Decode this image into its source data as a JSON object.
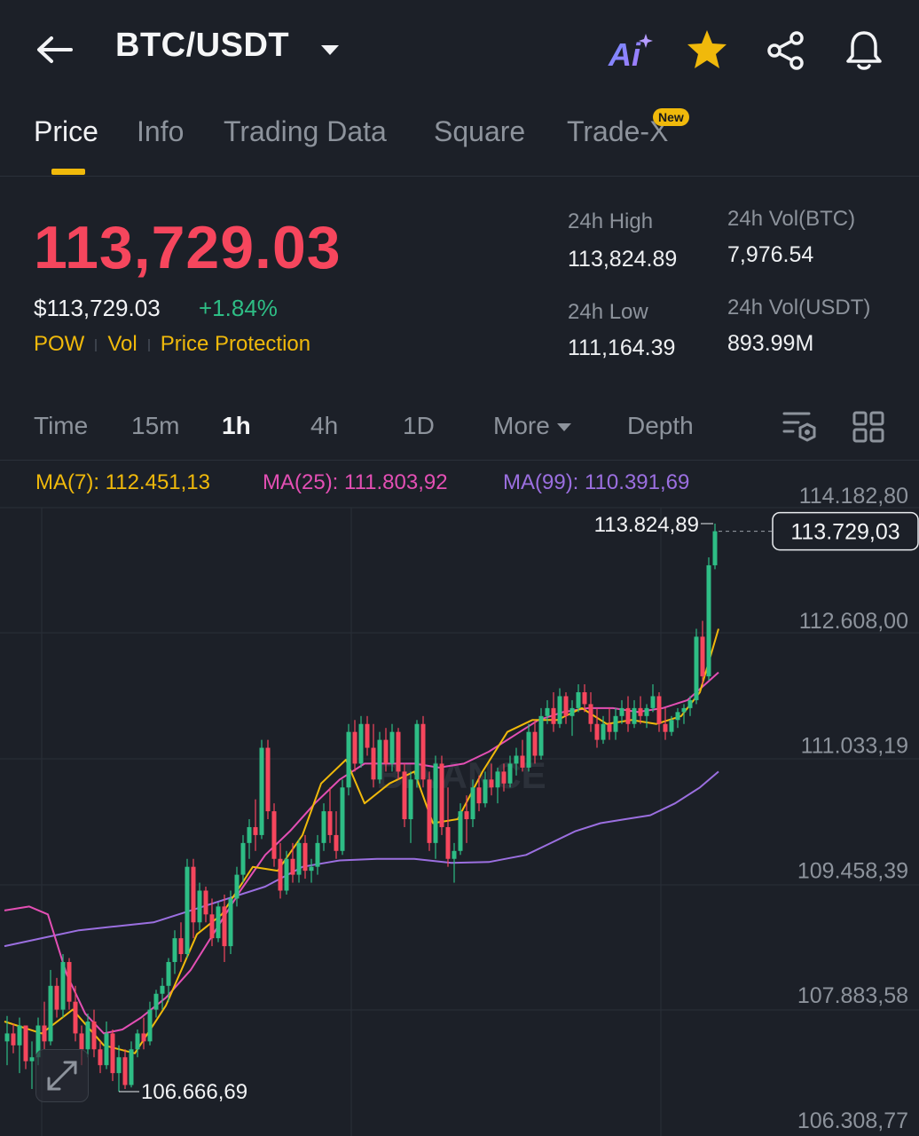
{
  "header": {
    "pair": "BTC/USDT",
    "ai_label": "Ai",
    "icons": [
      "back-arrow-icon",
      "caret-down-icon",
      "ai-icon",
      "star-icon",
      "share-icon",
      "bell-icon"
    ],
    "star_color": "#f0b90b"
  },
  "tabs": [
    {
      "label": "Price",
      "active": true
    },
    {
      "label": "Info",
      "active": false
    },
    {
      "label": "Trading Data",
      "active": false
    },
    {
      "label": "Square",
      "active": false
    },
    {
      "label": "Trade-X",
      "active": false,
      "badge": "New"
    }
  ],
  "price": {
    "last": "113,729.03",
    "usd": "$113,729.03",
    "change": "+1.84%",
    "tags": [
      "POW",
      "Vol",
      "Price Protection"
    ]
  },
  "stats": {
    "high_label": "24h High",
    "high_value": "113,824.89",
    "low_label": "24h Low",
    "low_value": "111,164.39",
    "vol_btc_label": "24h Vol(BTC)",
    "vol_btc_value": "7,976.54",
    "vol_usdt_label": "24h Vol(USDT)",
    "vol_usdt_value": "893.99M"
  },
  "intervals": [
    {
      "label": "Time",
      "active": false
    },
    {
      "label": "15m",
      "active": false
    },
    {
      "label": "1h",
      "active": true
    },
    {
      "label": "4h",
      "active": false
    },
    {
      "label": "1D",
      "active": false
    },
    {
      "label": "More",
      "active": false
    },
    {
      "label": "Depth",
      "active": false
    }
  ],
  "ma_legend": {
    "ma7": "MA(7): 112.451,13",
    "ma25": "MA(25): 111.803,92",
    "ma99": "MA(99): 110.391,69"
  },
  "colors": {
    "up": "#2ebd85",
    "down": "#f6465d",
    "ma7": "#f0b90b",
    "ma25": "#e34fb4",
    "ma99": "#9b6fe0",
    "accent": "#f0b90b"
  },
  "chart_data": {
    "type": "candlestick",
    "interval": "1h",
    "y_ticks": [
      "114.182,80",
      "112.608,00",
      "111.033,19",
      "109.458,39",
      "107.883,58",
      "106.308,77"
    ],
    "y_tick_values": [
      114182.8,
      112608.0,
      111033.19,
      109458.39,
      107883.58,
      106308.77
    ],
    "ylim": [
      106308.77,
      114182.8
    ],
    "current_price_label": "113.729,03",
    "current_price": 113729.03,
    "high_marker_label": "113.824,89",
    "high_marker": 113824.89,
    "low_marker_label": "106.666,69",
    "low_marker": 106666.69,
    "watermark": "BINANCE",
    "candles": [
      [
        107300,
        107620,
        107000,
        107400
      ],
      [
        107400,
        107520,
        107150,
        107250
      ],
      [
        107250,
        107600,
        106900,
        107500
      ],
      [
        107500,
        107500,
        106950,
        107050
      ],
      [
        107050,
        107300,
        106700,
        107100
      ],
      [
        107100,
        107600,
        107000,
        107500
      ],
      [
        107500,
        107800,
        107200,
        107300
      ],
      [
        107300,
        108200,
        107250,
        108000
      ],
      [
        108000,
        108100,
        107600,
        107700
      ],
      [
        107700,
        108400,
        107600,
        108300
      ],
      [
        108300,
        108350,
        107700,
        107800
      ],
      [
        107800,
        108000,
        107300,
        107400
      ],
      [
        107400,
        107500,
        107000,
        107200
      ],
      [
        107200,
        107650,
        107100,
        107550
      ],
      [
        107550,
        107700,
        107100,
        107200
      ],
      [
        107200,
        107300,
        106900,
        107000
      ],
      [
        107000,
        107550,
        106950,
        107400
      ],
      [
        107400,
        107450,
        106800,
        106900
      ],
      [
        106900,
        107250,
        106666.69,
        107100
      ],
      [
        107100,
        107200,
        106700,
        106750
      ],
      [
        106750,
        107300,
        106720,
        107200
      ],
      [
        107200,
        107450,
        107100,
        107400
      ],
      [
        107400,
        107600,
        107200,
        107300
      ],
      [
        107300,
        107800,
        107250,
        107700
      ],
      [
        107700,
        107950,
        107600,
        107900
      ],
      [
        107900,
        108100,
        107700,
        108000
      ],
      [
        108000,
        108350,
        107800,
        108300
      ],
      [
        108300,
        108700,
        108150,
        108600
      ],
      [
        108600,
        108800,
        108300,
        108400
      ],
      [
        108400,
        109600,
        108350,
        109500
      ],
      [
        109500,
        109600,
        108600,
        108800
      ],
      [
        108800,
        109300,
        108700,
        109200
      ],
      [
        109200,
        109250,
        108800,
        108900
      ],
      [
        108900,
        109100,
        108500,
        108600
      ],
      [
        108600,
        109050,
        108550,
        109000
      ],
      [
        109000,
        109150,
        108300,
        108500
      ],
      [
        108500,
        109200,
        108400,
        109100
      ],
      [
        109100,
        109500,
        109000,
        109400
      ],
      [
        109400,
        109900,
        109300,
        109800
      ],
      [
        109800,
        110100,
        109600,
        110000
      ],
      [
        110000,
        110350,
        109700,
        109900
      ],
      [
        109900,
        111100,
        109850,
        111000
      ],
      [
        111000,
        111100,
        110100,
        110200
      ],
      [
        110200,
        110300,
        109500,
        109600
      ],
      [
        109600,
        109800,
        109100,
        109200
      ],
      [
        109200,
        109700,
        109150,
        109600
      ],
      [
        109600,
        109800,
        109300,
        109400
      ],
      [
        109400,
        109850,
        109300,
        109800
      ],
      [
        109800,
        109900,
        109350,
        109450
      ],
      [
        109450,
        109600,
        109300,
        109500
      ],
      [
        109500,
        109900,
        109400,
        109800
      ],
      [
        109800,
        110300,
        109700,
        110200
      ],
      [
        110200,
        110500,
        109800,
        109900
      ],
      [
        109900,
        110200,
        109600,
        109700
      ],
      [
        109700,
        110600,
        109650,
        110500
      ],
      [
        110500,
        111300,
        110400,
        111200
      ],
      [
        111200,
        111350,
        110700,
        110800
      ],
      [
        110800,
        111400,
        110750,
        111300
      ],
      [
        111300,
        111400,
        110900,
        111000
      ],
      [
        111000,
        111300,
        110500,
        110600
      ],
      [
        110600,
        111200,
        110550,
        111100
      ],
      [
        111100,
        111250,
        110700,
        110800
      ],
      [
        110800,
        111300,
        110700,
        111200
      ],
      [
        111200,
        111250,
        110600,
        110700
      ],
      [
        110700,
        110800,
        110000,
        110100
      ],
      [
        110100,
        110700,
        109800,
        110600
      ],
      [
        110600,
        111350,
        110500,
        111300
      ],
      [
        111300,
        111400,
        110500,
        110600
      ],
      [
        110600,
        110700,
        109700,
        109800
      ],
      [
        109800,
        110900,
        109600,
        110800
      ],
      [
        110800,
        110900,
        109900,
        110000
      ],
      [
        110000,
        110500,
        109500,
        109600
      ],
      [
        109600,
        109800,
        109300,
        109700
      ],
      [
        109700,
        110300,
        109650,
        110200
      ],
      [
        110200,
        110400,
        109800,
        110100
      ],
      [
        110100,
        110600,
        110000,
        110500
      ],
      [
        110500,
        110650,
        110200,
        110300
      ],
      [
        110300,
        110700,
        110250,
        110600
      ],
      [
        110600,
        110800,
        110400,
        110500
      ],
      [
        110500,
        110750,
        110300,
        110700
      ],
      [
        110700,
        110800,
        110450,
        110550
      ],
      [
        110550,
        110900,
        110500,
        110800
      ],
      [
        110800,
        111000,
        110650,
        110900
      ],
      [
        110900,
        111100,
        110700,
        110750
      ],
      [
        110750,
        111300,
        110700,
        111200
      ],
      [
        111200,
        111350,
        110800,
        110900
      ],
      [
        110900,
        111500,
        110850,
        111400
      ],
      [
        111400,
        111600,
        111300,
        111500
      ],
      [
        111500,
        111700,
        111200,
        111300
      ],
      [
        111300,
        111750,
        111250,
        111650
      ],
      [
        111650,
        111700,
        111300,
        111400
      ],
      [
        111400,
        111600,
        111150,
        111500
      ],
      [
        111500,
        111800,
        111450,
        111700
      ],
      [
        111700,
        111800,
        111450,
        111550
      ],
      [
        111550,
        111700,
        111200,
        111300
      ],
      [
        111300,
        111500,
        111000,
        111100
      ],
      [
        111100,
        111400,
        111050,
        111300
      ],
      [
        111300,
        111500,
        111100,
        111200
      ],
      [
        111200,
        111500,
        111100,
        111400
      ],
      [
        111400,
        111600,
        111300,
        111500
      ],
      [
        111500,
        111650,
        111200,
        111300
      ],
      [
        111300,
        111600,
        111250,
        111500
      ],
      [
        111500,
        111650,
        111300,
        111400
      ],
      [
        111400,
        111550,
        111250,
        111500
      ],
      [
        111500,
        111800,
        111450,
        111650
      ],
      [
        111650,
        111700,
        111200,
        111300
      ],
      [
        111300,
        111500,
        111100,
        111200
      ],
      [
        111200,
        111400,
        111150,
        111350
      ],
      [
        111350,
        111500,
        111250,
        111450
      ],
      [
        111450,
        111550,
        111300,
        111500
      ],
      [
        111500,
        111650,
        111400,
        111600
      ],
      [
        111600,
        112500,
        111550,
        112400
      ],
      [
        112400,
        112600,
        111800,
        111900
      ],
      [
        111900,
        113400,
        111850,
        113300
      ],
      [
        113300,
        113824.89,
        113250,
        113729.03
      ]
    ],
    "ma7": [
      [
        0,
        107550
      ],
      [
        6,
        107400
      ],
      [
        11,
        107700
      ],
      [
        16,
        107250
      ],
      [
        21,
        107150
      ],
      [
        26,
        107750
      ],
      [
        31,
        108650
      ],
      [
        35,
        108900
      ],
      [
        40,
        109500
      ],
      [
        44,
        109450
      ],
      [
        48,
        109900
      ],
      [
        51,
        110550
      ],
      [
        55,
        110850
      ],
      [
        58,
        110300
      ],
      [
        62,
        110550
      ],
      [
        66,
        110700
      ],
      [
        69,
        110050
      ],
      [
        73,
        110100
      ],
      [
        77,
        110700
      ],
      [
        81,
        111200
      ],
      [
        85,
        111350
      ],
      [
        89,
        111350
      ],
      [
        93,
        111500
      ],
      [
        97,
        111300
      ],
      [
        101,
        111350
      ],
      [
        105,
        111300
      ],
      [
        109,
        111400
      ],
      [
        112,
        111700
      ],
      [
        115,
        112500
      ]
    ],
    "ma25": [
      [
        0,
        108950
      ],
      [
        4,
        109000
      ],
      [
        7,
        108900
      ],
      [
        10,
        108150
      ],
      [
        13,
        107650
      ],
      [
        16,
        107400
      ],
      [
        19,
        107450
      ],
      [
        22,
        107600
      ],
      [
        26,
        107850
      ],
      [
        30,
        108200
      ],
      [
        34,
        108700
      ],
      [
        38,
        109200
      ],
      [
        42,
        109650
      ],
      [
        46,
        109950
      ],
      [
        50,
        110300
      ],
      [
        54,
        110600
      ],
      [
        58,
        110800
      ],
      [
        62,
        110800
      ],
      [
        66,
        110800
      ],
      [
        70,
        110750
      ],
      [
        74,
        110800
      ],
      [
        78,
        110950
      ],
      [
        82,
        111150
      ],
      [
        86,
        111350
      ],
      [
        90,
        111450
      ],
      [
        94,
        111500
      ],
      [
        98,
        111500
      ],
      [
        102,
        111450
      ],
      [
        106,
        111500
      ],
      [
        110,
        111600
      ],
      [
        115,
        111950
      ]
    ],
    "ma99": [
      [
        0,
        108500
      ],
      [
        6,
        108600
      ],
      [
        12,
        108700
      ],
      [
        18,
        108750
      ],
      [
        24,
        108800
      ],
      [
        30,
        108950
      ],
      [
        36,
        109100
      ],
      [
        42,
        109250
      ],
      [
        48,
        109500
      ],
      [
        54,
        109580
      ],
      [
        60,
        109600
      ],
      [
        66,
        109600
      ],
      [
        72,
        109550
      ],
      [
        78,
        109560
      ],
      [
        84,
        109650
      ],
      [
        88,
        109800
      ],
      [
        92,
        109950
      ],
      [
        96,
        110050
      ],
      [
        100,
        110100
      ],
      [
        104,
        110150
      ],
      [
        108,
        110300
      ],
      [
        112,
        110500
      ],
      [
        115,
        110700
      ]
    ]
  }
}
